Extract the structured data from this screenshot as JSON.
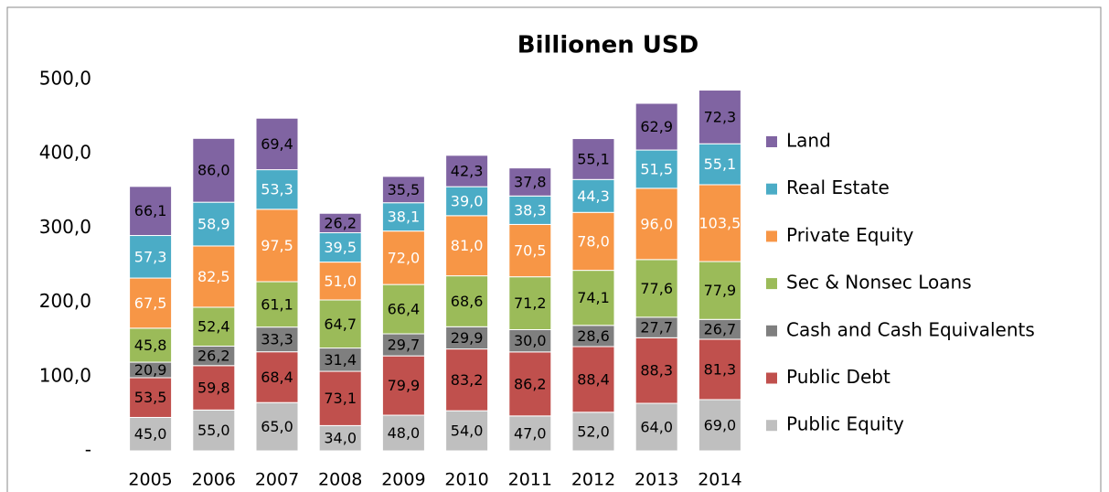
{
  "chart_data": {
    "type": "bar",
    "stacked": true,
    "title": "Billionen USD",
    "categories": [
      "2005",
      "2006",
      "2007",
      "2008",
      "2009",
      "2010",
      "2011",
      "2012",
      "2013",
      "2014"
    ],
    "series": [
      {
        "name": "Public Equity",
        "color": "#bfbfbf",
        "values": [
          45.0,
          55.0,
          65.0,
          34.0,
          48.0,
          54.0,
          47.0,
          52.0,
          64.0,
          69.0
        ],
        "value_labels": [
          "45,0",
          "55,0",
          "65,0",
          "34,0",
          "48,0",
          "54,0",
          "47,0",
          "52,0",
          "64,0",
          "69,0"
        ]
      },
      {
        "name": "Public Debt",
        "color": "#c0504d",
        "values": [
          53.5,
          59.8,
          68.4,
          73.1,
          79.9,
          83.2,
          86.2,
          88.4,
          88.3,
          81.3
        ],
        "value_labels": [
          "53,5",
          "59,8",
          "68,4",
          "73,1",
          "79,9",
          "83,2",
          "86,2",
          "88,4",
          "88,3",
          "81,3"
        ]
      },
      {
        "name": "Cash and Cash Equivalents",
        "color": "#7f7f7f",
        "values": [
          20.9,
          26.2,
          33.3,
          31.4,
          29.7,
          29.9,
          30.0,
          28.6,
          27.7,
          26.7
        ],
        "value_labels": [
          "20,9",
          "26,2",
          "33,3",
          "31,4",
          "29,7",
          "29,9",
          "30,0",
          "28,6",
          "27,7",
          "26,7"
        ]
      },
      {
        "name": "Sec & Nonsec Loans",
        "color": "#9bbb59",
        "values": [
          45.8,
          52.4,
          61.1,
          64.7,
          66.4,
          68.6,
          71.2,
          74.1,
          77.6,
          77.9
        ],
        "value_labels": [
          "45,8",
          "52,4",
          "61,1",
          "64,7",
          "66,4",
          "68,6",
          "71,2",
          "74,1",
          "77,6",
          "77,9"
        ]
      },
      {
        "name": "Private Equity",
        "color": "#f79646",
        "values": [
          67.5,
          82.5,
          97.5,
          51.0,
          72.0,
          81.0,
          70.5,
          78.0,
          96.0,
          103.5
        ],
        "value_labels": [
          "67,5",
          "82,5",
          "97,5",
          "51,0",
          "72,0",
          "81,0",
          "70,5",
          "78,0",
          "96,0",
          "103,5"
        ]
      },
      {
        "name": "Real Estate",
        "color": "#4bacc6",
        "values": [
          57.3,
          58.9,
          53.3,
          39.5,
          38.1,
          39.0,
          38.3,
          44.3,
          51.5,
          55.1
        ],
        "value_labels": [
          "57,3",
          "58,9",
          "53,3",
          "39,5",
          "38,1",
          "39,0",
          "38,3",
          "44,3",
          "51,5",
          "55,1"
        ]
      },
      {
        "name": "Land",
        "color": "#8064a2",
        "values": [
          66.1,
          86.0,
          69.4,
          26.2,
          35.5,
          42.3,
          37.8,
          55.1,
          62.9,
          72.3
        ],
        "value_labels": [
          "66,1",
          "86,0",
          "69,4",
          "26,2",
          "35,5",
          "42,3",
          "37,8",
          "55,1",
          "62,9",
          "72,3"
        ]
      }
    ],
    "ylim": [
      0,
      500
    ],
    "yticks": [
      {
        "value": 0,
        "label": "-"
      },
      {
        "value": 100,
        "label": "100,0"
      },
      {
        "value": 200,
        "label": "200,0"
      },
      {
        "value": 300,
        "label": "300,0"
      },
      {
        "value": 400,
        "label": "400,0"
      },
      {
        "value": 500,
        "label": "500,0"
      }
    ],
    "legend": "right"
  }
}
